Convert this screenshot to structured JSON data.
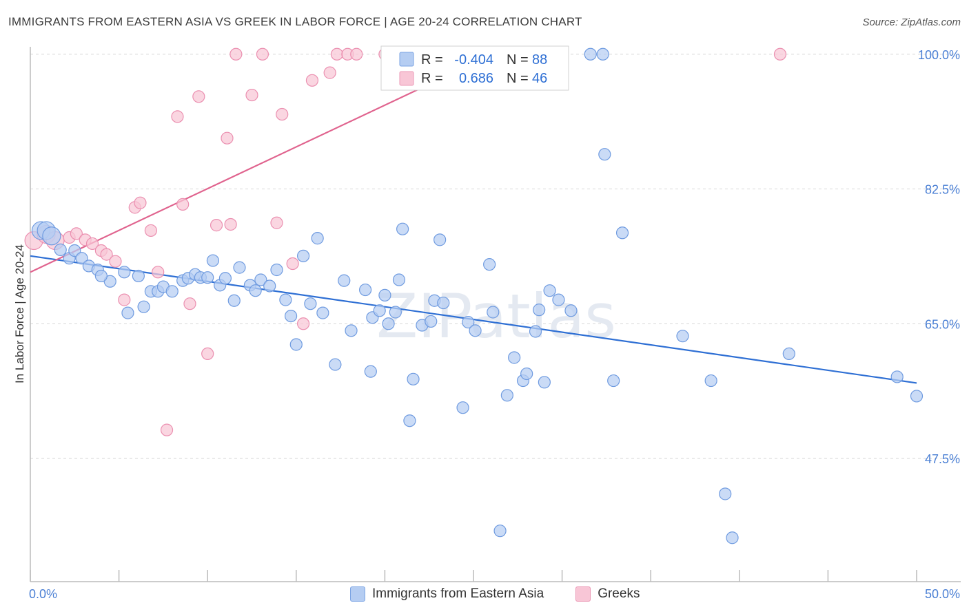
{
  "title": "IMMIGRANTS FROM EASTERN ASIA VS GREEK IN LABOR FORCE | AGE 20-24 CORRELATION CHART",
  "source": "Source: ZipAtlas.com",
  "watermark": "ZIPatlas",
  "colors": {
    "blue_fill": "#b5cdf2",
    "blue_stroke": "#6f9be0",
    "blue_line": "#2e6fd4",
    "pink_fill": "#f8c6d6",
    "pink_stroke": "#eb8fb0",
    "pink_line": "#e0638e",
    "tick_text": "#4a7fd4",
    "grid": "#d6d6d6"
  },
  "legend_box": {
    "rows": [
      {
        "r_label": "R =",
        "r_value": "-0.404",
        "n_label": "N =",
        "n_value": "88"
      },
      {
        "r_label": "R =",
        "r_value": "0.686",
        "n_label": "N =",
        "n_value": "46"
      }
    ]
  },
  "bottom_legend": {
    "series1": "Immigrants from Eastern Asia",
    "series2": "Greeks"
  },
  "chart_data": {
    "type": "scatter",
    "xlabel": "",
    "ylabel": "In Labor Force | Age 20-24",
    "xlim": [
      0,
      50
    ],
    "ylim": [
      31.5,
      101.5
    ],
    "x_tick_labels": [
      "0.0%",
      "50.0%"
    ],
    "y_ticks": [
      47.5,
      65.0,
      82.5,
      100.0
    ],
    "y_tick_labels": [
      "47.5%",
      "65.0%",
      "82.5%",
      "100.0%"
    ],
    "grid": true,
    "series": [
      {
        "name": "Immigrants from Eastern Asia",
        "color": "#b5cdf2",
        "trend": {
          "x": [
            0,
            50
          ],
          "y": [
            73.8,
            57.3
          ]
        },
        "points": [
          [
            0.6,
            77.1
          ],
          [
            0.9,
            77.1
          ],
          [
            1.2,
            76.4
          ],
          [
            1.7,
            74.6
          ],
          [
            2.2,
            73.5
          ],
          [
            2.5,
            74.5
          ],
          [
            2.9,
            73.5
          ],
          [
            3.3,
            72.5
          ],
          [
            3.8,
            72.0
          ],
          [
            4.5,
            70.5
          ],
          [
            4.0,
            71.2
          ],
          [
            5.3,
            71.7
          ],
          [
            5.5,
            66.4
          ],
          [
            6.1,
            71.2
          ],
          [
            6.4,
            67.2
          ],
          [
            6.8,
            69.2
          ],
          [
            7.2,
            69.2
          ],
          [
            7.5,
            69.8
          ],
          [
            8.0,
            69.2
          ],
          [
            8.6,
            70.6
          ],
          [
            8.9,
            70.9
          ],
          [
            9.3,
            71.4
          ],
          [
            9.6,
            71.0
          ],
          [
            10.0,
            71.0
          ],
          [
            10.3,
            73.2
          ],
          [
            10.7,
            70.0
          ],
          [
            11.0,
            70.9
          ],
          [
            11.5,
            68.0
          ],
          [
            11.8,
            72.3
          ],
          [
            12.4,
            70.0
          ],
          [
            12.7,
            69.3
          ],
          [
            13.0,
            70.7
          ],
          [
            13.5,
            69.9
          ],
          [
            13.9,
            72.0
          ],
          [
            14.4,
            68.1
          ],
          [
            14.7,
            66.0
          ],
          [
            15.0,
            62.3
          ],
          [
            15.4,
            73.8
          ],
          [
            15.8,
            67.6
          ],
          [
            16.2,
            76.1
          ],
          [
            16.5,
            66.4
          ],
          [
            17.2,
            59.7
          ],
          [
            17.7,
            70.6
          ],
          [
            18.1,
            64.1
          ],
          [
            18.9,
            69.4
          ],
          [
            19.2,
            58.8
          ],
          [
            19.3,
            65.8
          ],
          [
            19.7,
            66.7
          ],
          [
            20.0,
            68.7
          ],
          [
            20.6,
            66.5
          ],
          [
            20.8,
            70.7
          ],
          [
            21.0,
            77.3
          ],
          [
            21.4,
            52.4
          ],
          [
            21.6,
            57.8
          ],
          [
            22.1,
            64.8
          ],
          [
            22.6,
            65.3
          ],
          [
            22.8,
            68.0
          ],
          [
            23.1,
            75.9
          ],
          [
            23.3,
            67.7
          ],
          [
            24.4,
            54.1
          ],
          [
            24.7,
            65.2
          ],
          [
            25.1,
            64.1
          ],
          [
            25.9,
            72.7
          ],
          [
            26.1,
            66.5
          ],
          [
            26.9,
            55.7
          ],
          [
            27.3,
            60.6
          ],
          [
            27.8,
            57.6
          ],
          [
            28.0,
            58.5
          ],
          [
            28.7,
            66.8
          ],
          [
            29.0,
            57.4
          ],
          [
            29.3,
            69.3
          ],
          [
            29.8,
            68.1
          ],
          [
            30.5,
            66.7
          ],
          [
            31.6,
            100.0
          ],
          [
            32.3,
            100.0
          ],
          [
            32.4,
            87.0
          ],
          [
            32.9,
            57.6
          ],
          [
            33.4,
            76.8
          ],
          [
            36.8,
            63.4
          ],
          [
            38.4,
            57.6
          ],
          [
            39.2,
            42.9
          ],
          [
            39.6,
            37.2
          ],
          [
            42.8,
            61.1
          ],
          [
            48.9,
            58.1
          ],
          [
            50.0,
            55.6
          ],
          [
            28.5,
            64.0
          ],
          [
            26.5,
            38.1
          ],
          [
            20.2,
            65.0
          ]
        ]
      },
      {
        "name": "Greeks",
        "color": "#f8c6d6",
        "trend": {
          "x": [
            0,
            26.1
          ],
          "y": [
            71.7,
            100.0
          ]
        },
        "points": [
          [
            0.2,
            75.8
          ],
          [
            0.9,
            76.6
          ],
          [
            1.4,
            75.8
          ],
          [
            2.2,
            76.2
          ],
          [
            2.6,
            76.7
          ],
          [
            3.1,
            75.9
          ],
          [
            3.5,
            75.4
          ],
          [
            4.0,
            74.5
          ],
          [
            4.3,
            74.0
          ],
          [
            4.8,
            73.1
          ],
          [
            5.3,
            68.1
          ],
          [
            5.9,
            80.1
          ],
          [
            6.2,
            80.7
          ],
          [
            6.8,
            77.1
          ],
          [
            7.2,
            71.7
          ],
          [
            7.7,
            51.2
          ],
          [
            8.3,
            91.9
          ],
          [
            8.6,
            80.5
          ],
          [
            9.0,
            67.6
          ],
          [
            9.5,
            94.5
          ],
          [
            10.0,
            61.1
          ],
          [
            10.5,
            77.8
          ],
          [
            11.1,
            89.1
          ],
          [
            11.3,
            77.9
          ],
          [
            11.6,
            100.0
          ],
          [
            12.5,
            94.7
          ],
          [
            13.1,
            100.0
          ],
          [
            13.9,
            78.1
          ],
          [
            14.2,
            92.2
          ],
          [
            14.8,
            72.8
          ],
          [
            15.4,
            65.0
          ],
          [
            15.9,
            96.6
          ],
          [
            16.9,
            97.6
          ],
          [
            17.3,
            100.0
          ],
          [
            17.9,
            100.0
          ],
          [
            18.4,
            100.0
          ],
          [
            20.0,
            100.0
          ],
          [
            20.5,
            100.0
          ],
          [
            21.3,
            100.0
          ],
          [
            22.0,
            100.0
          ],
          [
            23.0,
            100.0
          ],
          [
            24.1,
            100.0
          ],
          [
            25.2,
            100.0
          ],
          [
            25.9,
            100.0
          ],
          [
            26.1,
            100.0
          ],
          [
            42.3,
            100.0
          ]
        ]
      }
    ]
  }
}
